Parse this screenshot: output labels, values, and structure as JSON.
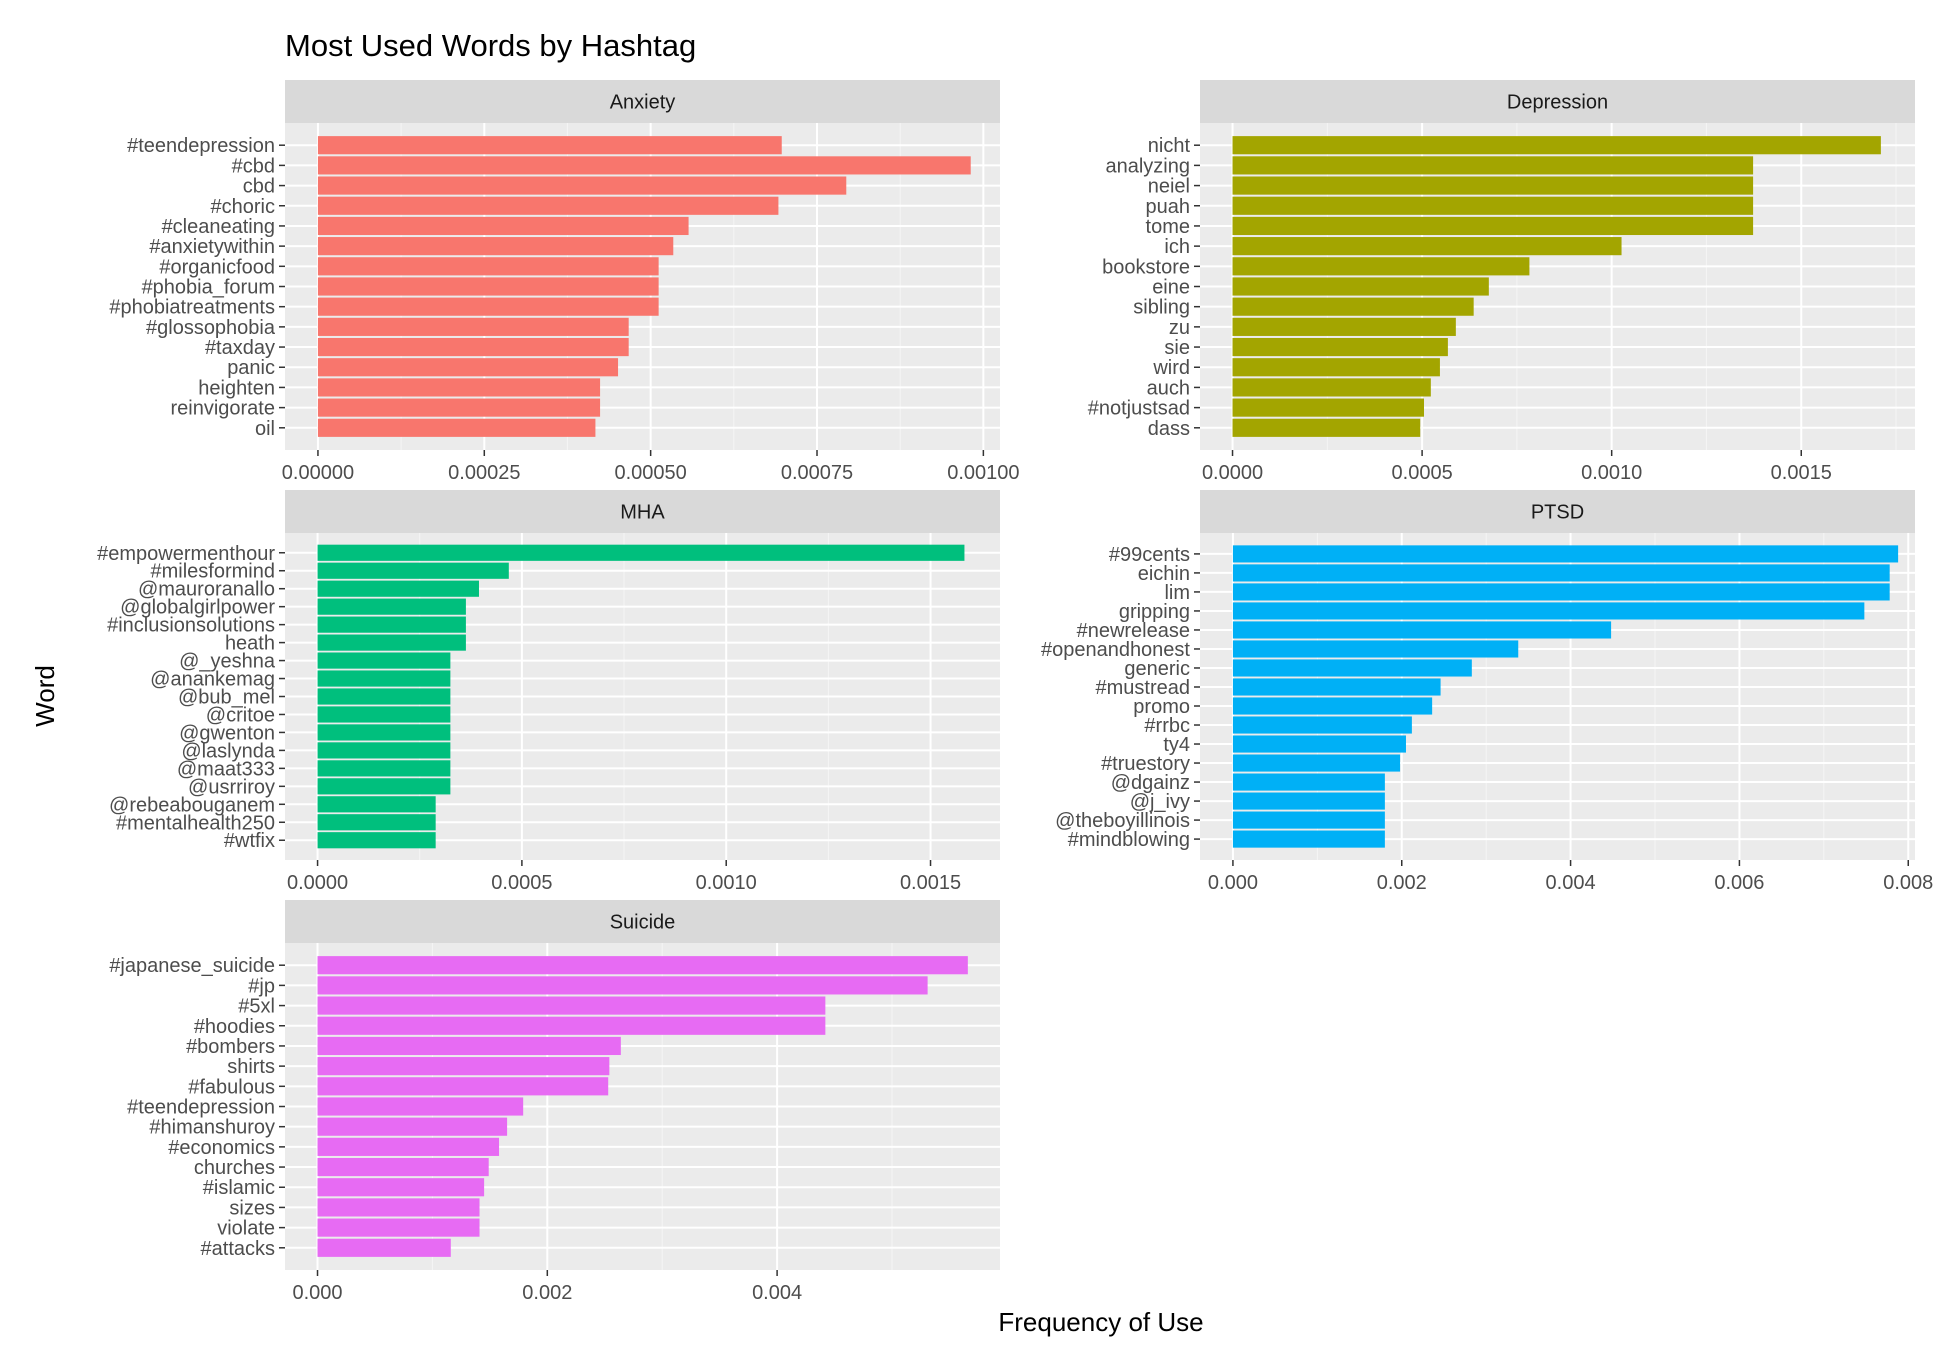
{
  "figure": {
    "title": "Most Used Words by Hashtag",
    "xlabel": "Frequency of Use",
    "ylabel": "Word"
  },
  "chart_data": [
    {
      "type": "bar",
      "orientation": "horizontal",
      "panel": "Anxiety",
      "color": "#F8766D",
      "categories": [
        "#teendepression",
        "#cbd",
        "cbd",
        "#choric",
        "#cleaneating",
        "#anxietywithin",
        "#organicfood",
        "#phobia_forum",
        "#phobiatreatments",
        "#glossophobia",
        "#taxday",
        "panic",
        "heighten",
        "reinvigorate",
        "oil"
      ],
      "values": [
        0.000697,
        0.000981,
        0.000794,
        0.000692,
        0.000557,
        0.000534,
        0.000512,
        0.000512,
        0.000512,
        0.000467,
        0.000467,
        0.000451,
        0.000424,
        0.000424,
        0.000417
      ],
      "xlim": [
        -4.95e-05,
        0.001025
      ],
      "xticks": [
        0,
        0.00025,
        0.0005,
        0.00075,
        0.001
      ],
      "xtick_labels": [
        "0.00000",
        "0.00025",
        "0.00050",
        "0.00075",
        "0.00100"
      ],
      "grid": true
    },
    {
      "type": "bar",
      "orientation": "horizontal",
      "panel": "Depression",
      "color": "#A3A500",
      "categories": [
        "nicht",
        "analyzing",
        "neiel",
        "puah",
        "tome",
        "ich",
        "bookstore",
        "eine",
        "sibling",
        "zu",
        "sie",
        "wird",
        "auch",
        "#notjustsad",
        "dass"
      ],
      "values": [
        0.00171,
        0.001373,
        0.001373,
        0.001373,
        0.001373,
        0.001026,
        0.000783,
        0.000676,
        0.000636,
        0.000589,
        0.000568,
        0.000547,
        0.000523,
        0.000505,
        0.000495
      ],
      "xlim": [
        -8.58e-05,
        0.0018
      ],
      "xticks": [
        0,
        0.0005,
        0.001,
        0.0015
      ],
      "xtick_labels": [
        "0.0000",
        "0.0005",
        "0.0010",
        "0.0015"
      ],
      "grid": true
    },
    {
      "type": "bar",
      "orientation": "horizontal",
      "panel": "MHA",
      "color": "#00BF7D",
      "categories": [
        "#empowermenthour",
        "#milesformind",
        "@mauroranallo",
        "@globalgirlpower",
        "#inclusionsolutions",
        "heath",
        "@_yeshna",
        "@anankemag",
        "@bub_mel",
        "@critoe",
        "@gwenton",
        "@laslynda",
        "@maat333",
        "@usrriroy",
        "@rebeabouganem",
        "#mentalhealth250",
        "#wtfix"
      ],
      "values": [
        0.001583,
        0.000468,
        0.000395,
        0.000363,
        0.000363,
        0.000363,
        0.000325,
        0.000325,
        0.000325,
        0.000325,
        0.000325,
        0.000325,
        0.000325,
        0.000325,
        0.000289,
        0.000289,
        0.000289
      ],
      "xlim": [
        -7.97e-05,
        0.00167
      ],
      "xticks": [
        0,
        0.0005,
        0.001,
        0.0015
      ],
      "xtick_labels": [
        "0.0000",
        "0.0005",
        "0.0010",
        "0.0015"
      ],
      "grid": true
    },
    {
      "type": "bar",
      "orientation": "horizontal",
      "panel": "PTSD",
      "color": "#00B0F6",
      "categories": [
        "#99cents",
        "eichin",
        "lim",
        "gripping",
        "#newrelease",
        "#openandhonest",
        "generic",
        "#mustread",
        "promo",
        "#rrbc",
        "ty4",
        "#truestory",
        "@dgainz",
        "@j_ivy",
        "@theboyillinois",
        "#mindblowing"
      ],
      "values": [
        0.00788,
        0.00778,
        0.00778,
        0.00748,
        0.00448,
        0.00338,
        0.00283,
        0.00246,
        0.00236,
        0.00212,
        0.00205,
        0.00198,
        0.0018,
        0.0018,
        0.0018,
        0.0018
      ],
      "xlim": [
        -0.00039,
        0.00808
      ],
      "xticks": [
        0,
        0.002,
        0.004,
        0.006,
        0.008
      ],
      "xtick_labels": [
        "0.000",
        "0.002",
        "0.004",
        "0.006",
        "0.008"
      ],
      "grid": true
    },
    {
      "type": "bar",
      "orientation": "horizontal",
      "panel": "Suicide",
      "color": "#E76BF3",
      "categories": [
        "#japanese_suicide",
        "#jp",
        "#5xl",
        "#hoodies",
        "#bombers",
        "shirts",
        "#fabulous",
        "#teendepression",
        "#himanshuroy",
        "#economics",
        "churches",
        "#islamic",
        "sizes",
        "violate",
        "#attacks"
      ],
      "values": [
        0.00566,
        0.00531,
        0.00442,
        0.00442,
        0.00264,
        0.00254,
        0.00253,
        0.00179,
        0.00165,
        0.00158,
        0.00149,
        0.00145,
        0.00141,
        0.00141,
        0.00116
      ],
      "xlim": [
        -0.000283,
        0.00594
      ],
      "xticks": [
        0,
        0.002,
        0.004
      ],
      "xtick_labels": [
        "0.000",
        "0.002",
        "0.004"
      ],
      "grid": true
    }
  ]
}
